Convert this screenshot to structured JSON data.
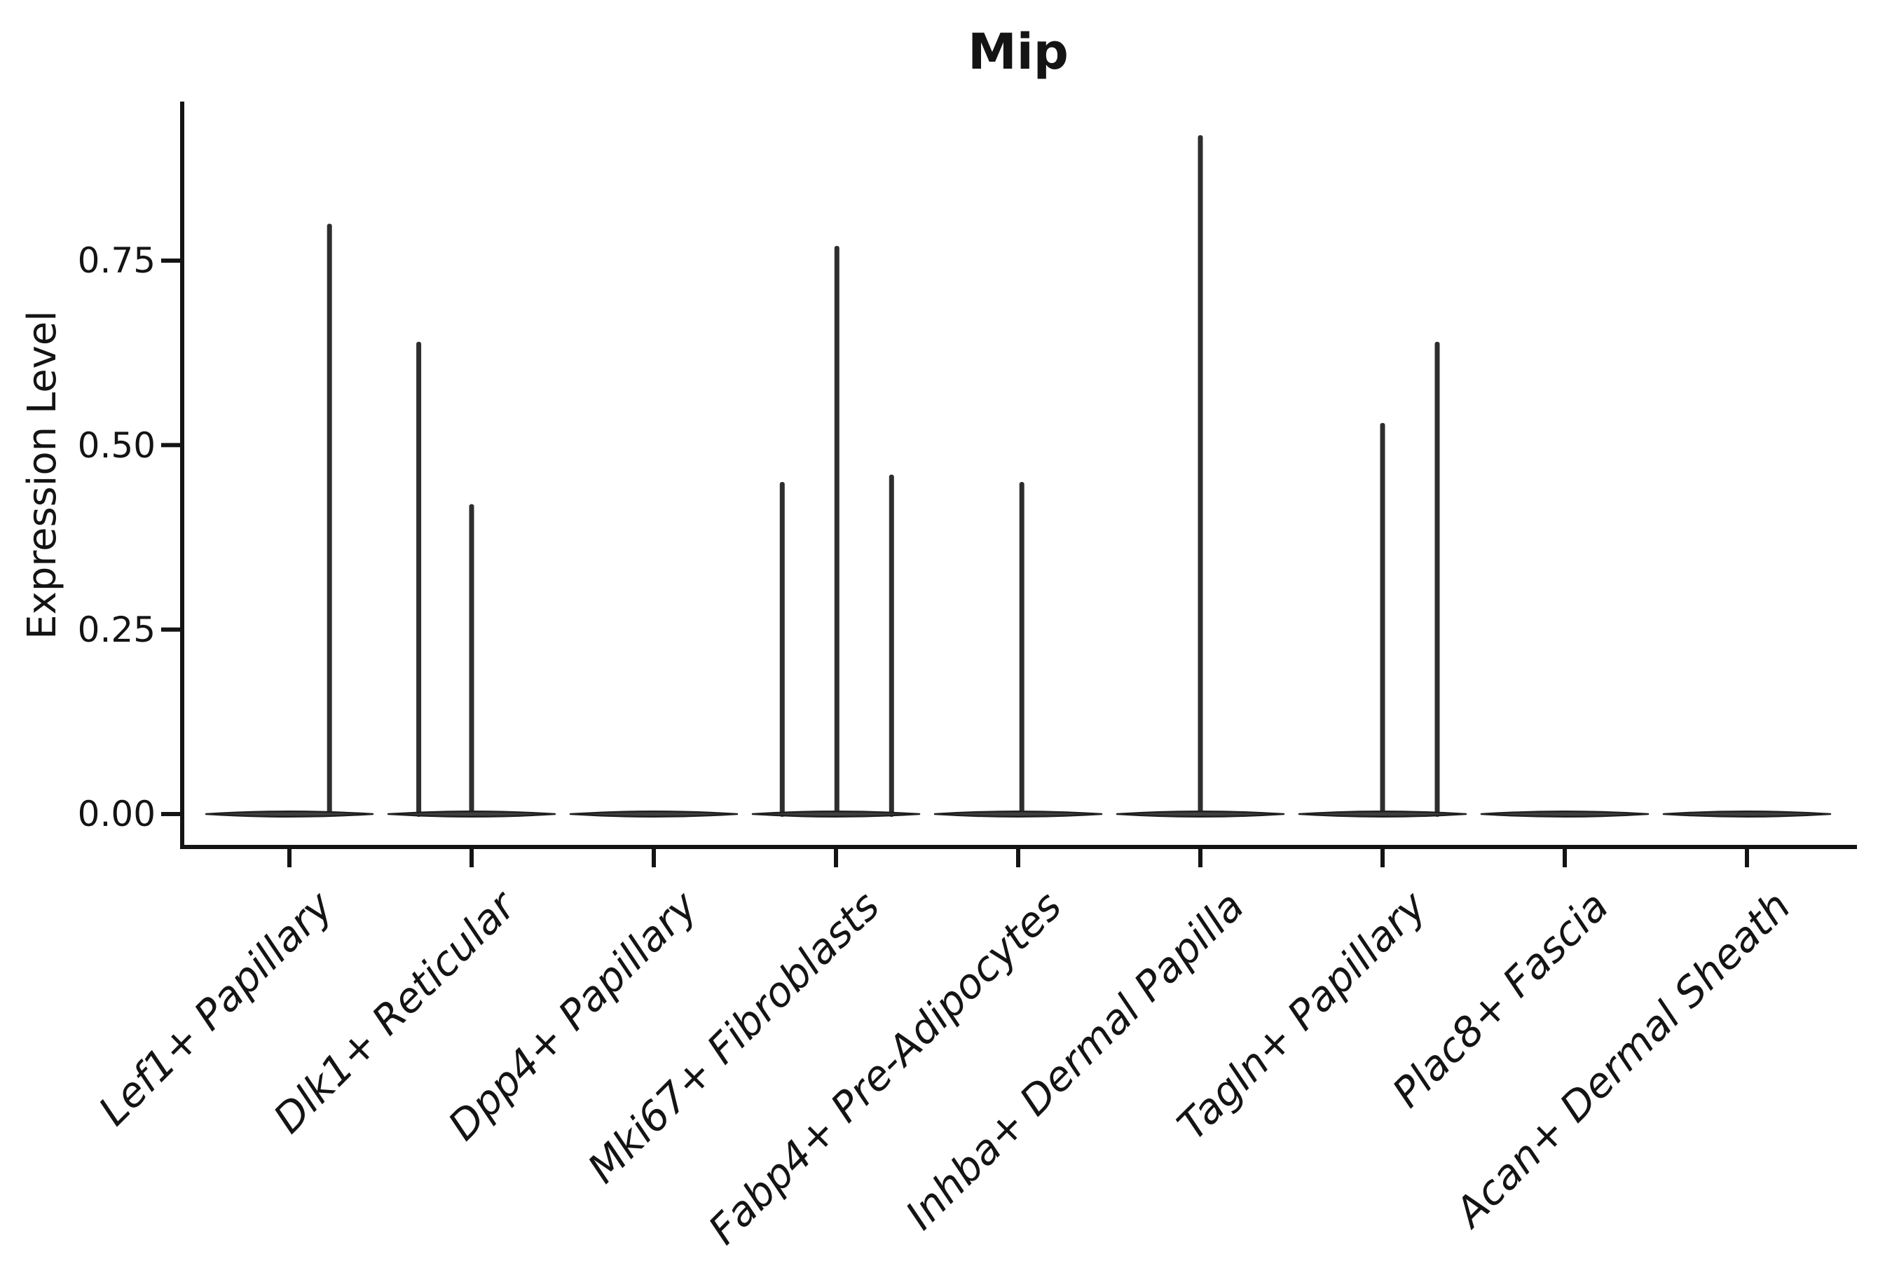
{
  "chart_data": {
    "type": "violin",
    "title": "Mip",
    "ylabel": "Expression Level",
    "grid": false,
    "legend": null,
    "ylim": [
      -0.045,
      0.966
    ],
    "y_ticks": [
      {
        "label": "0.00",
        "value": 0.0
      },
      {
        "label": "0.25",
        "value": 0.25
      },
      {
        "label": "0.50",
        "value": 0.5
      },
      {
        "label": "0.75",
        "value": 0.75
      }
    ],
    "categories": [
      "Lef1+ Papillary",
      "Dlk1+ Reticular",
      "Dpp4+ Papillary",
      "Mki67+ Fibroblasts",
      "Fabp4+ Pre-Adipocytes",
      "Inhba+ Dermal Papilla",
      "Tagln+ Papillary",
      "Plac8+ Fascia",
      "Acan+ Dermal Sheath"
    ],
    "series": [
      {
        "category": "Lef1+ Papillary",
        "baseline_value": 0.0,
        "spikes": [
          {
            "value": 0.8,
            "offset": 0.22
          }
        ]
      },
      {
        "category": "Dlk1+ Reticular",
        "baseline_value": 0.0,
        "spikes": [
          {
            "value": 0.64,
            "offset": -0.29
          },
          {
            "value": 0.42,
            "offset": 0.0
          }
        ]
      },
      {
        "category": "Dpp4+ Papillary",
        "baseline_value": 0.0,
        "spikes": []
      },
      {
        "category": "Mki67+ Fibroblasts",
        "baseline_value": 0.0,
        "spikes": [
          {
            "value": 0.45,
            "offset": -0.295
          },
          {
            "value": 0.77,
            "offset": 0.005
          },
          {
            "value": 0.46,
            "offset": 0.305
          }
        ]
      },
      {
        "category": "Fabp4+ Pre-Adipocytes",
        "baseline_value": 0.0,
        "spikes": [
          {
            "value": 0.45,
            "offset": 0.02
          }
        ]
      },
      {
        "category": "Inhba+ Dermal Papilla",
        "baseline_value": 0.0,
        "spikes": [
          {
            "value": 0.92,
            "offset": 0.0
          }
        ]
      },
      {
        "category": "Tagln+ Papillary",
        "baseline_value": 0.0,
        "spikes": [
          {
            "value": 0.53,
            "offset": 0.0
          },
          {
            "value": 0.64,
            "offset": 0.3
          }
        ]
      },
      {
        "category": "Plac8+ Fascia",
        "baseline_value": 0.0,
        "spikes": []
      },
      {
        "category": "Acan+ Dermal Sheath",
        "baseline_value": 0.0,
        "spikes": []
      }
    ],
    "colors": {
      "violin_fill": "#3f3f3f",
      "violin_edge": "#202020",
      "spike": "#2e2e2e",
      "axis": "#141414",
      "text": "#141414"
    }
  }
}
